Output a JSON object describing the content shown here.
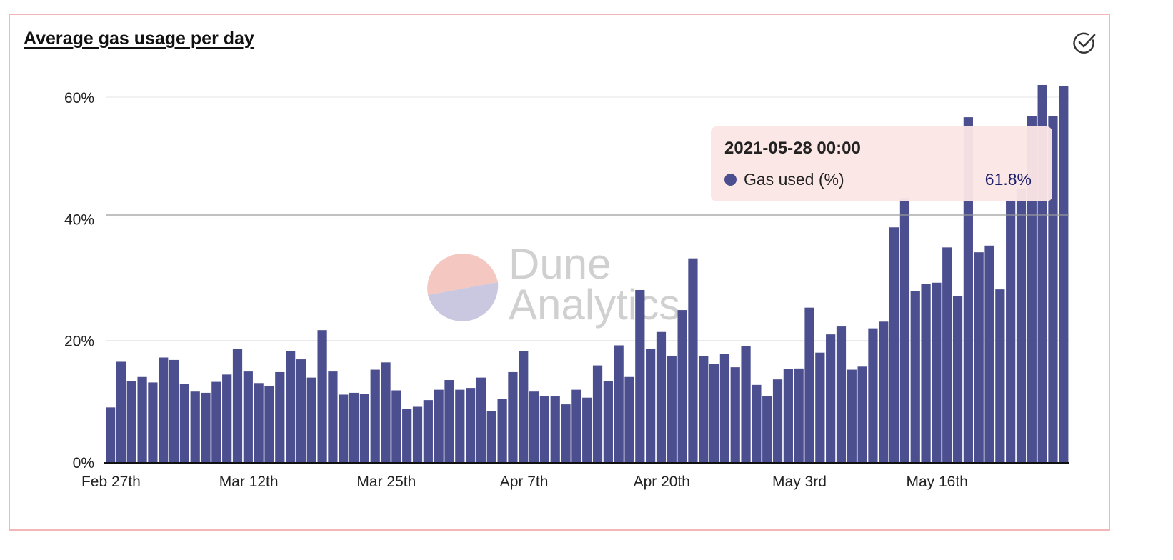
{
  "card": {
    "title": "Average gas usage per day",
    "action_icon": "check-circle-icon"
  },
  "watermark": {
    "line1": "Dune",
    "line2": "Analytics",
    "logo_color_top": "#f4c7c0",
    "logo_color_bottom": "#c9c8e0"
  },
  "tooltip": {
    "date": "2021-05-28 00:00",
    "series_label": "Gas used (%)",
    "value": "61.8%"
  },
  "colors": {
    "bar": "#4b4e8f",
    "grid": "#e6e6e6",
    "axis": "#111111",
    "card_border": "#f4b6b6"
  },
  "chart_data": {
    "type": "bar",
    "title": "Average gas usage per day",
    "xlabel": "",
    "ylabel": "",
    "ylim": [
      0,
      60
    ],
    "y_ticks": [
      0,
      20,
      40,
      60
    ],
    "y_tick_labels": [
      "0%",
      "20%",
      "40%",
      "60%"
    ],
    "x_ticks": [
      {
        "index": 0,
        "label": "Feb 27th"
      },
      {
        "index": 13,
        "label": "Mar 12th"
      },
      {
        "index": 26,
        "label": "Mar 25th"
      },
      {
        "index": 39,
        "label": "Apr 7th"
      },
      {
        "index": 52,
        "label": "Apr 20th"
      },
      {
        "index": 65,
        "label": "May 3rd"
      },
      {
        "index": 78,
        "label": "May 16th"
      }
    ],
    "grid": true,
    "legend": "none",
    "series": [
      {
        "name": "Gas used (%)",
        "values": [
          9.0,
          16.5,
          13.3,
          14.0,
          13.1,
          17.2,
          16.8,
          12.8,
          11.6,
          11.4,
          13.2,
          14.4,
          18.6,
          14.9,
          13.0,
          12.5,
          14.8,
          18.3,
          16.9,
          13.9,
          21.7,
          14.9,
          11.1,
          11.4,
          11.2,
          15.2,
          16.4,
          11.8,
          8.7,
          9.1,
          10.2,
          11.9,
          13.5,
          11.9,
          12.2,
          13.9,
          8.4,
          10.4,
          14.8,
          18.2,
          11.6,
          10.8,
          10.8,
          9.5,
          11.9,
          10.6,
          15.9,
          13.3,
          19.2,
          14.0,
          28.3,
          18.6,
          21.4,
          17.5,
          25.0,
          33.5,
          17.4,
          16.1,
          17.8,
          15.6,
          19.1,
          12.7,
          10.9,
          13.6,
          15.3,
          15.4,
          25.4,
          18.0,
          21.0,
          22.3,
          15.2,
          15.7,
          22.0,
          23.1,
          38.6,
          43.4,
          28.1,
          29.3,
          29.5,
          35.3,
          27.3,
          56.7,
          34.5,
          35.6,
          28.4,
          43.0,
          45.0,
          56.9,
          62.0,
          56.9,
          61.8
        ]
      }
    ]
  }
}
